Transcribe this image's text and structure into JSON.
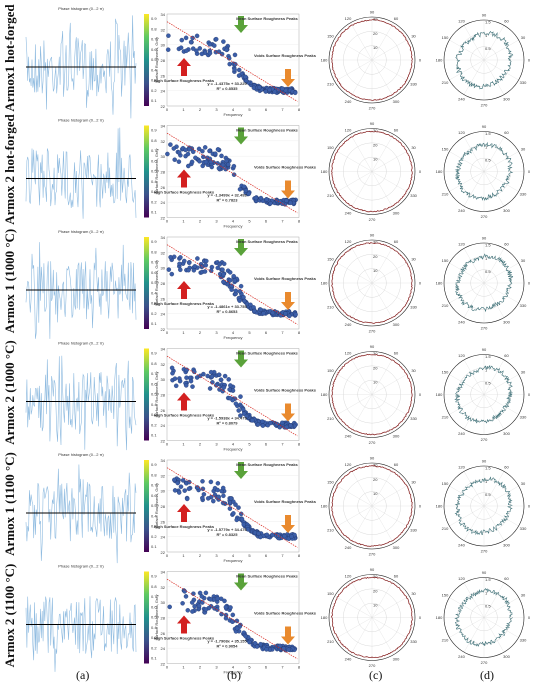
{
  "panel_labels": [
    "(a)",
    "(b)",
    "(c)",
    "(d)"
  ],
  "histogram_title": "Phase histogram (0...2 π)",
  "colorbar_ticks": [
    "0.9",
    "0.8",
    "0.7",
    "0.6",
    "0.5",
    "0.4",
    "0.3",
    "0.2",
    "0.1"
  ],
  "scatter_ylabel": "Surface Roughness, Gray",
  "scatter_xlabel": "Frequency",
  "scatter_xticks": [
    "0",
    "1",
    "2",
    "3",
    "4",
    "5",
    "6",
    "7",
    "8"
  ],
  "scatter_yticks": [
    "34",
    "32",
    "30",
    "28",
    "26",
    "24",
    "22"
  ],
  "annotations": {
    "high": "High Surface Roughness Peaks",
    "mean": "Mean Surface Roughness Peaks",
    "voids": "Voids Surface Roughness Peaks"
  },
  "polar_angles": [
    "90",
    "120",
    "150",
    "180",
    "210",
    "240",
    "270",
    "300",
    "330",
    "0",
    "30",
    "60"
  ],
  "polar_c_radii": [
    "10",
    "20",
    "30"
  ],
  "polar_d_radii": [
    "0.5",
    "1",
    "1.5"
  ],
  "colors": {
    "histogram": "#8fbbe0",
    "scatter": "#3b5ea8",
    "trend": "#d8271e",
    "green": "#5aa23a",
    "orange": "#e98a2e",
    "red": "#d32020"
  },
  "rows": [
    {
      "label": "Armox1 hot-forged",
      "equation": "y = -1.4375x + 33.229",
      "r2": "R² = 0.8535"
    },
    {
      "label": "Armox 2 hot-forged",
      "equation": "y = -1.3499x + 32.492",
      "r2": "R² = 0.7823"
    },
    {
      "label": "Armox 1 (1000 °C)",
      "equation": "y = -1.4861x + 33.755",
      "r2": "R² = 0.8653"
    },
    {
      "label": "Armox 2 (1000 °C)",
      "equation": "y = -1.5938x + 34.479",
      "r2": "R² = 0.8079"
    },
    {
      "label": "Armox 1 (1100 °C)",
      "equation": "y = -1.5779x + 34.476",
      "r2": "R² = 0.8325"
    },
    {
      "label": "Armox 2 (1100 °C)",
      "equation": "y = -1.7908x + 35.155",
      "r2": "R² = 0.9054"
    }
  ]
}
